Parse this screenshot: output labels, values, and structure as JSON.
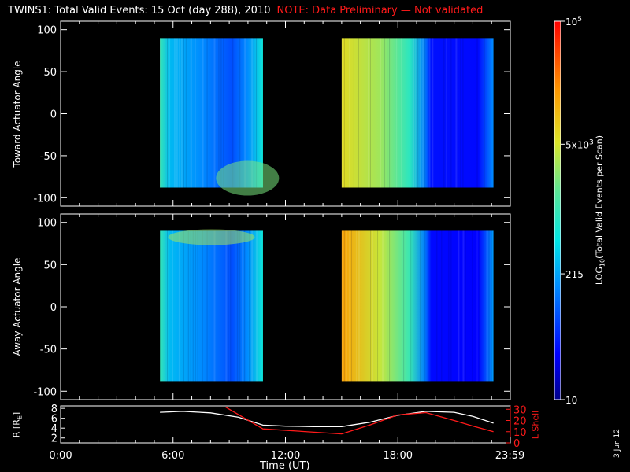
{
  "title": "TWINS1: Total Valid Events: 15 Oct (day 288), 2010",
  "note": "NOTE: Data Preliminary — Not validated",
  "date_stamp": "3 Jun 12",
  "colors": {
    "background": "#000000",
    "axes": "#ffffff",
    "note": "#ff1a1a",
    "lshell": "#ff1a1a",
    "radius": "#ffffff"
  },
  "chart_data": [
    {
      "type": "heatmap",
      "ylabel": "Toward Actuator Angle",
      "ylim": [
        -110,
        110
      ],
      "yticks": [
        100,
        50,
        0,
        -50,
        -100
      ],
      "xlim": [
        0,
        24
      ],
      "data_blocks": [
        {
          "t_start": 5.3,
          "t_end": 10.8,
          "angle_range": [
            -88,
            90
          ],
          "level": "medium-low"
        },
        {
          "t_start": 15.0,
          "t_end": 23.1,
          "angle_range": [
            -88,
            90
          ],
          "level": "high-to-low"
        }
      ]
    },
    {
      "type": "heatmap",
      "ylabel": "Away Actuator Angle",
      "ylim": [
        -110,
        110
      ],
      "yticks": [
        100,
        50,
        0,
        -50,
        -100
      ],
      "xlim": [
        0,
        24
      ],
      "data_blocks": [
        {
          "t_start": 5.3,
          "t_end": 10.8,
          "angle_range": [
            -88,
            90
          ],
          "level": "medium-low"
        },
        {
          "t_start": 15.0,
          "t_end": 23.1,
          "angle_range": [
            -88,
            90
          ],
          "level": "high-to-low"
        }
      ]
    },
    {
      "type": "line",
      "ylabel": "R [RE]",
      "ylabel2": "L Shell",
      "xlabel": "Time (UT)",
      "xlim": [
        0,
        24
      ],
      "xticks": [
        0,
        6,
        12,
        18,
        23.98
      ],
      "xtick_labels": [
        "0:00",
        "6:00",
        "12:00",
        "18:00",
        "23:59"
      ],
      "yticks_left": [
        2,
        4,
        6,
        8
      ],
      "yticks_right": [
        0,
        10,
        20,
        30
      ],
      "ylim_left": [
        1,
        8.5
      ],
      "ylim_right": [
        0,
        33
      ],
      "series": [
        {
          "name": "R [RE]",
          "color": "#ffffff",
          "axis": "left",
          "x": [
            5.3,
            6.5,
            8.0,
            9.5,
            10.8,
            12.0,
            13.5,
            15.0,
            16.5,
            18.0,
            19.5,
            21.0,
            22.0,
            23.1
          ],
          "y": [
            7.2,
            7.4,
            7.1,
            6.2,
            4.6,
            4.4,
            4.3,
            4.3,
            5.2,
            6.6,
            7.4,
            7.2,
            6.4,
            5.0
          ]
        },
        {
          "name": "L Shell",
          "color": "#ff1a1a",
          "axis": "right",
          "x": [
            8.8,
            10.8,
            15.0,
            16.5,
            18.0,
            19.5,
            21.0,
            22.0,
            23.1
          ],
          "y": [
            32,
            12.5,
            8,
            16,
            25,
            27,
            20,
            15,
            10
          ]
        }
      ]
    },
    {
      "type": "colorbar",
      "label": "LOG10(Total Valid Events per Scan)",
      "ticks": [
        "10",
        "215",
        "5x10^3",
        "10^5"
      ],
      "tick_values": [
        1,
        2.33,
        3.7,
        5
      ],
      "range": [
        1,
        5
      ]
    }
  ]
}
